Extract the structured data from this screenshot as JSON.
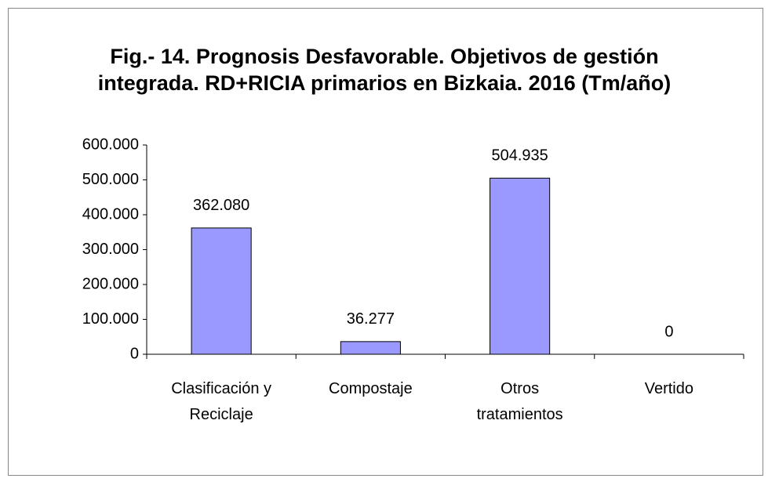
{
  "chart_data": {
    "type": "bar",
    "title": "Fig.- 14. Prognosis Desfavorable. Objetivos de gestión integrada. RD+RICIA primarios en Bizkaia. 2016 (Tm/año)",
    "categories": [
      "Clasificación y Reciclaje",
      "Compostaje",
      "Otros tratamientos",
      "Vertido"
    ],
    "values": [
      362080,
      36277,
      504935,
      0
    ],
    "value_labels": [
      "362.080",
      "36.277",
      "504.935",
      "0"
    ],
    "color": "#9999ff",
    "ylim": [
      0,
      600000
    ],
    "yticks": [
      0,
      {
        "value": 100000,
        "label": "100.000"
      },
      {
        "value": 200000,
        "label": "200.000"
      },
      {
        "value": 300000,
        "label": "300.000"
      },
      {
        "value": 400000,
        "label": "400.000"
      },
      {
        "value": 500000,
        "label": "500.000"
      },
      {
        "value": 600000,
        "label": "600.000"
      }
    ],
    "grid": false
  }
}
